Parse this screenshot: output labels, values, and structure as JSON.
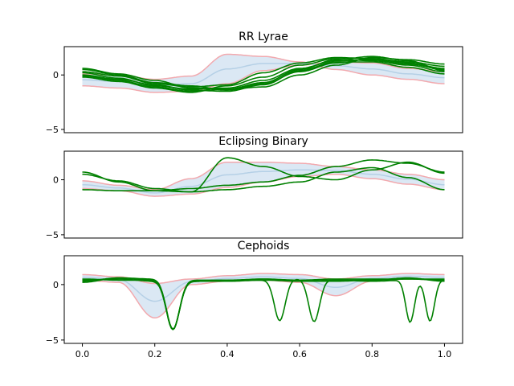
{
  "colors": {
    "band_fill": "#dbe8f4",
    "band_edge": "#f2a9ae",
    "mean_line": "#b5d0e6",
    "samples": "#008000",
    "axes": "#000000"
  },
  "chart_data": [
    {
      "type": "line",
      "title": "RR Lyrae",
      "xlim": [
        -0.05,
        1.05
      ],
      "ylim": [
        -5.3,
        2.6
      ],
      "yticks": [
        -5,
        0
      ],
      "ytick_labels": [
        "−5",
        "0"
      ],
      "xticks": [],
      "x": [
        0,
        0.1,
        0.2,
        0.3,
        0.4,
        0.5,
        0.6,
        0.7,
        0.8,
        0.9,
        1.0
      ],
      "band_upper": [
        0.1,
        0.0,
        -0.4,
        -0.1,
        1.9,
        1.7,
        1.2,
        0.5,
        0.0,
        -0.4,
        -0.8
      ],
      "band_lower": [
        -1.0,
        -1.2,
        -1.6,
        -1.5,
        -0.8,
        0.4,
        0.9,
        1.2,
        1.1,
        0.6,
        0.3
      ],
      "mean": [
        -0.45,
        -0.6,
        -1.0,
        -0.8,
        0.55,
        1.05,
        1.05,
        0.85,
        0.55,
        0.1,
        -0.25
      ],
      "samples": [
        {
          "y": [
            0.2,
            -0.3,
            -1.0,
            -1.3,
            -1.2,
            -0.5,
            0.6,
            1.3,
            1.4,
            1.0,
            0.5
          ]
        },
        {
          "y": [
            0.5,
            0.0,
            -0.7,
            -1.0,
            -1.4,
            -0.8,
            0.3,
            1.1,
            1.5,
            1.2,
            0.8
          ]
        },
        {
          "y": [
            -0.2,
            -0.6,
            -1.2,
            -1.6,
            -1.0,
            -0.2,
            0.9,
            1.5,
            1.3,
            0.9,
            0.3
          ]
        },
        {
          "y": [
            0.6,
            0.1,
            -0.5,
            -1.2,
            -1.3,
            -1.1,
            0.0,
            0.9,
            1.6,
            1.4,
            1.0
          ]
        },
        {
          "y": [
            0.0,
            -0.4,
            -0.9,
            -1.4,
            -1.5,
            -0.9,
            0.4,
            1.2,
            1.2,
            0.7,
            0.1
          ]
        },
        {
          "y": [
            0.3,
            -0.1,
            -0.8,
            -1.1,
            -0.9,
            0.2,
            1.1,
            1.6,
            1.5,
            1.1,
            0.6
          ]
        },
        {
          "y": [
            -0.1,
            -0.5,
            -1.1,
            -1.5,
            -1.3,
            -0.7,
            0.5,
            1.4,
            1.7,
            1.3,
            0.4
          ]
        }
      ]
    },
    {
      "type": "line",
      "title": "Eclipsing Binary",
      "xlim": [
        -0.05,
        1.05
      ],
      "ylim": [
        -5.3,
        2.6
      ],
      "yticks": [
        -5,
        0
      ],
      "ytick_labels": [
        "−5",
        "0"
      ],
      "xticks": [],
      "x": [
        0,
        0.1,
        0.2,
        0.3,
        0.4,
        0.5,
        0.6,
        0.7,
        0.8,
        0.9,
        1.0
      ],
      "band_upper": [
        -0.1,
        -0.5,
        -0.9,
        0.1,
        1.6,
        1.6,
        1.5,
        1.2,
        0.9,
        0.5,
        0.0
      ],
      "band_lower": [
        -0.8,
        -1.0,
        -1.5,
        -1.3,
        -0.7,
        -0.2,
        0.3,
        0.5,
        0.1,
        -0.4,
        -0.9
      ],
      "mean": [
        -0.45,
        -0.75,
        -1.2,
        -0.6,
        0.45,
        0.75,
        0.9,
        0.85,
        0.5,
        0.05,
        -0.45
      ],
      "samples": [
        {
          "y": [
            0.7,
            -0.2,
            -1.0,
            -1.1,
            2.0,
            1.2,
            0.3,
            0.0,
            0.9,
            1.6,
            0.6
          ]
        },
        {
          "y": [
            -0.9,
            -1.0,
            -1.0,
            -0.8,
            -0.5,
            -0.2,
            0.4,
            1.2,
            1.8,
            1.5,
            0.7
          ]
        },
        {
          "y": [
            0.5,
            -0.1,
            -0.8,
            -1.1,
            -0.9,
            -0.6,
            -0.2,
            0.7,
            1.1,
            0.2,
            -0.9
          ]
        }
      ]
    },
    {
      "type": "line",
      "title": "Cephoids",
      "xlim": [
        -0.05,
        1.05
      ],
      "ylim": [
        -5.3,
        2.6
      ],
      "yticks": [
        -5,
        0
      ],
      "ytick_labels": [
        "−5",
        "0"
      ],
      "xticks": [
        0.0,
        0.2,
        0.4,
        0.6,
        0.8,
        1.0
      ],
      "xtick_labels": [
        "0.0",
        "0.2",
        "0.4",
        "0.6",
        "0.8",
        "1.0"
      ],
      "x": [
        0,
        0.1,
        0.2,
        0.3,
        0.4,
        0.5,
        0.6,
        0.7,
        0.8,
        0.9,
        1.0
      ],
      "band_upper": [
        0.9,
        0.7,
        0.1,
        0.5,
        0.8,
        1.0,
        0.9,
        0.5,
        0.8,
        1.0,
        0.9
      ],
      "band_lower": [
        0.4,
        0.2,
        -3.0,
        0.0,
        0.3,
        0.4,
        0.2,
        -1.0,
        0.3,
        0.5,
        0.4
      ],
      "mean": [
        0.65,
        0.45,
        -1.5,
        0.25,
        0.55,
        0.7,
        0.55,
        -0.25,
        0.55,
        0.75,
        0.65
      ],
      "dips": [
        {
          "center": 0.25,
          "depth": 4.4,
          "width": 0.018
        },
        {
          "center": 0.545,
          "depth": 3.7,
          "width": 0.015
        },
        {
          "center": 0.64,
          "depth": 3.8,
          "width": 0.015
        },
        {
          "center": 0.905,
          "depth": 3.8,
          "width": 0.012
        },
        {
          "center": 0.96,
          "depth": 3.7,
          "width": 0.012
        }
      ],
      "samples": [
        {
          "y": [
            0.4,
            0.5,
            0.3,
            0.4,
            0.4,
            0.5,
            0.4,
            0.5,
            0.5,
            0.5,
            0.5
          ],
          "dip_ids": [
            0
          ]
        },
        {
          "y": [
            0.2,
            0.6,
            0.5,
            0.3,
            0.4,
            0.4,
            0.5,
            0.4,
            0.4,
            0.6,
            0.3
          ],
          "dip_ids": [
            0,
            1,
            2
          ]
        },
        {
          "y": [
            0.5,
            0.4,
            0.4,
            0.3,
            0.3,
            0.4,
            0.3,
            0.4,
            0.3,
            0.4,
            0.4
          ],
          "dip_ids": [
            0,
            3,
            4
          ]
        },
        {
          "y": [
            0.3,
            0.6,
            0.4,
            0.3,
            0.3,
            0.5,
            0.3,
            0.3,
            0.4,
            0.5,
            0.4
          ],
          "dip_ids": [
            0
          ]
        }
      ]
    }
  ]
}
